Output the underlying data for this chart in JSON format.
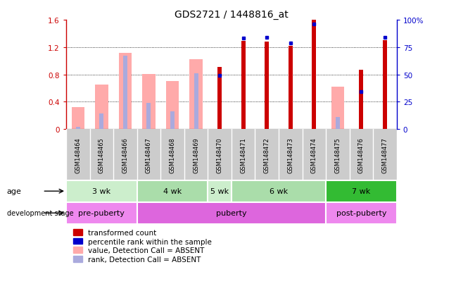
{
  "title": "GDS2721 / 1448816_at",
  "samples": [
    "GSM148464",
    "GSM148465",
    "GSM148466",
    "GSM148467",
    "GSM148468",
    "GSM148469",
    "GSM148470",
    "GSM148471",
    "GSM148472",
    "GSM148473",
    "GSM148474",
    "GSM148475",
    "GSM148476",
    "GSM148477"
  ],
  "transformed_count": [
    null,
    null,
    null,
    null,
    null,
    null,
    0.91,
    1.29,
    1.28,
    1.22,
    1.6,
    null,
    0.87,
    1.3
  ],
  "percentile_rank_pct": [
    null,
    null,
    null,
    null,
    null,
    null,
    49,
    83,
    84,
    79,
    96,
    null,
    34,
    84
  ],
  "absent_value": [
    0.32,
    0.65,
    1.12,
    0.81,
    0.7,
    1.02,
    null,
    null,
    null,
    null,
    null,
    0.62,
    null,
    null
  ],
  "absent_rank_pct": [
    2,
    14,
    67,
    24,
    16,
    51,
    null,
    null,
    null,
    null,
    null,
    11,
    null,
    null
  ],
  "ylim_left": [
    0,
    1.6
  ],
  "ylim_right": [
    0,
    100
  ],
  "yticks_left": [
    0,
    0.4,
    0.8,
    1.2,
    1.6
  ],
  "yticks_right": [
    0,
    25,
    50,
    75,
    100
  ],
  "ytick_labels_left": [
    "0",
    "0.4",
    "0.8",
    "1.2",
    "1.6"
  ],
  "ytick_labels_right": [
    "0",
    "25",
    "50",
    "75",
    "100%"
  ],
  "age_groups": [
    {
      "label": "3 wk",
      "start": 0,
      "end": 3,
      "color": "#cceecc"
    },
    {
      "label": "4 wk",
      "start": 3,
      "end": 6,
      "color": "#aaddaa"
    },
    {
      "label": "5 wk",
      "start": 6,
      "end": 7,
      "color": "#cceecc"
    },
    {
      "label": "6 wk",
      "start": 7,
      "end": 11,
      "color": "#aaddaa"
    },
    {
      "label": "7 wk",
      "start": 11,
      "end": 14,
      "color": "#33bb33"
    }
  ],
  "dev_groups": [
    {
      "label": "pre-puberty",
      "start": 0,
      "end": 3,
      "color": "#ee88ee"
    },
    {
      "label": "puberty",
      "start": 3,
      "end": 11,
      "color": "#dd66dd"
    },
    {
      "label": "post-puberty",
      "start": 11,
      "end": 14,
      "color": "#ee88ee"
    }
  ],
  "colors": {
    "red": "#cc0000",
    "blue": "#0000cc",
    "pink": "#ffaaaa",
    "light_blue": "#aaaadd",
    "gray_bg": "#cccccc"
  },
  "pink_bar_width": 0.55,
  "lblue_bar_width": 0.18,
  "red_bar_width": 0.18,
  "legend_items": [
    {
      "color": "#cc0000",
      "label": "transformed count"
    },
    {
      "color": "#0000cc",
      "label": "percentile rank within the sample"
    },
    {
      "color": "#ffaaaa",
      "label": "value, Detection Call = ABSENT"
    },
    {
      "color": "#aaaadd",
      "label": "rank, Detection Call = ABSENT"
    }
  ]
}
